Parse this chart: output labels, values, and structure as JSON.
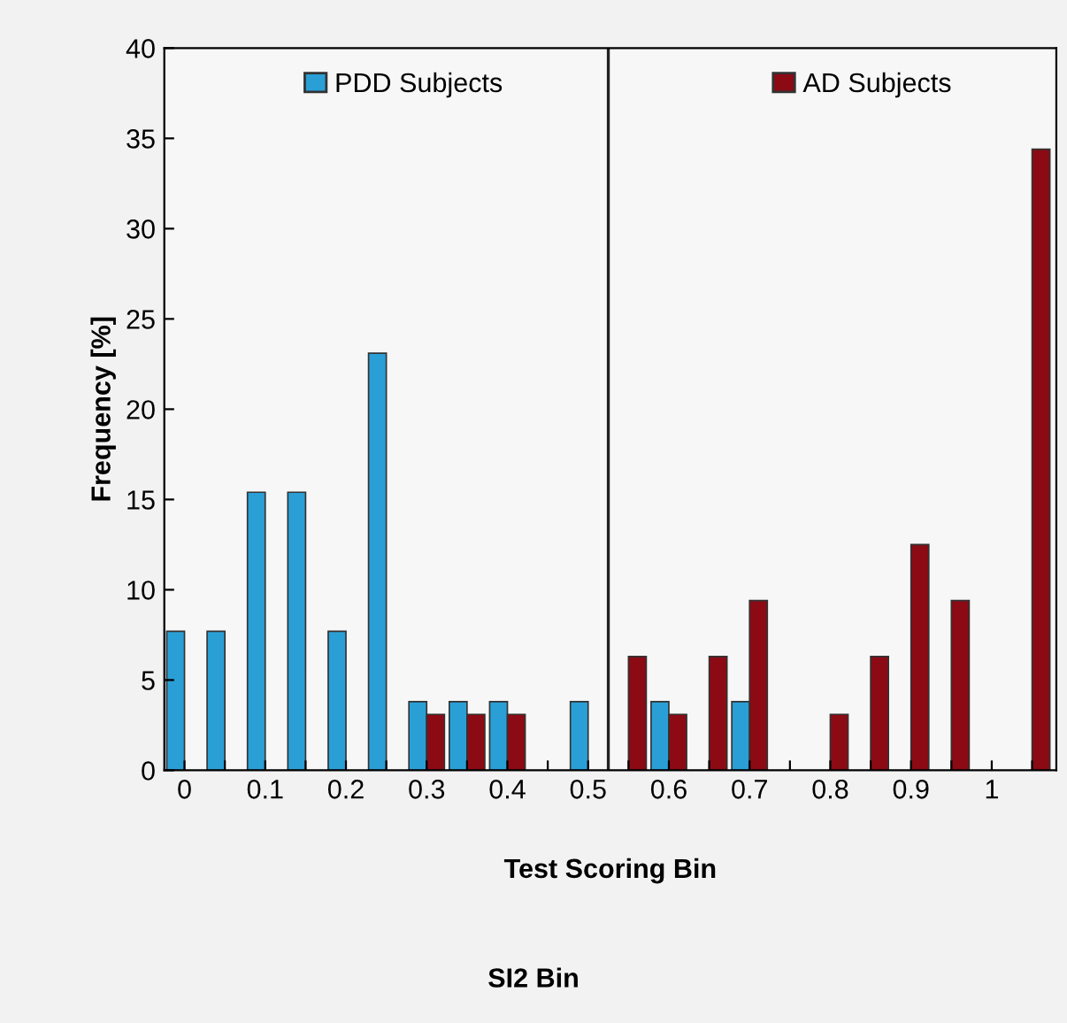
{
  "chart_data": {
    "type": "bar",
    "xlabel": "Test Scoring Bin",
    "ylabel": "Frequency [%]",
    "x": [
      0,
      0.05,
      0.1,
      0.15,
      0.2,
      0.25,
      0.3,
      0.35,
      0.4,
      0.45,
      0.5,
      0.55,
      0.6,
      0.65,
      0.7,
      0.75,
      0.8,
      0.85,
      0.9,
      0.95,
      1,
      1.05
    ],
    "series": [
      {
        "name": "PDD Subjects",
        "color": "#2a9fd6",
        "values": [
          7.7,
          7.7,
          15.4,
          15.4,
          7.7,
          23.1,
          3.8,
          3.8,
          3.8,
          null,
          3.8,
          null,
          3.8,
          null,
          3.8,
          null,
          null,
          null,
          null,
          null,
          null,
          null
        ]
      },
      {
        "name": "AD Subjects",
        "color": "#8b0a14",
        "values": [
          null,
          null,
          null,
          null,
          null,
          null,
          3.1,
          3.1,
          3.1,
          null,
          null,
          6.3,
          3.1,
          6.3,
          9.4,
          null,
          3.1,
          6.3,
          12.5,
          9.4,
          null,
          34.4
        ]
      }
    ],
    "xlim": [
      -0.025,
      1.08
    ],
    "ylim": [
      0,
      40
    ],
    "xticks": [
      0,
      {
        "value": 0.05,
        "label": null
      },
      0.1,
      {
        "value": 0.15,
        "label": null
      },
      0.2,
      {
        "value": 0.25,
        "label": null
      },
      0.3,
      {
        "value": 0.35,
        "label": null
      },
      0.4,
      {
        "value": 0.45,
        "label": null
      },
      0.5,
      {
        "value": 0.55,
        "label": null
      },
      0.6,
      {
        "value": 0.65,
        "label": null
      },
      0.7,
      {
        "value": 0.75,
        "label": null
      },
      0.8,
      {
        "value": 0.85,
        "label": null
      },
      0.9,
      {
        "value": 0.95,
        "label": null
      },
      1,
      {
        "value": 1.05,
        "label": null
      }
    ],
    "yticks": [
      0,
      5,
      10,
      15,
      20,
      25,
      30,
      35,
      40
    ],
    "ref_lines": [
      {
        "axis": "x",
        "value": 0.525,
        "color": "#222222"
      }
    ],
    "annotations": [
      "SI2 Bin"
    ],
    "legend": "top",
    "grid": false
  }
}
